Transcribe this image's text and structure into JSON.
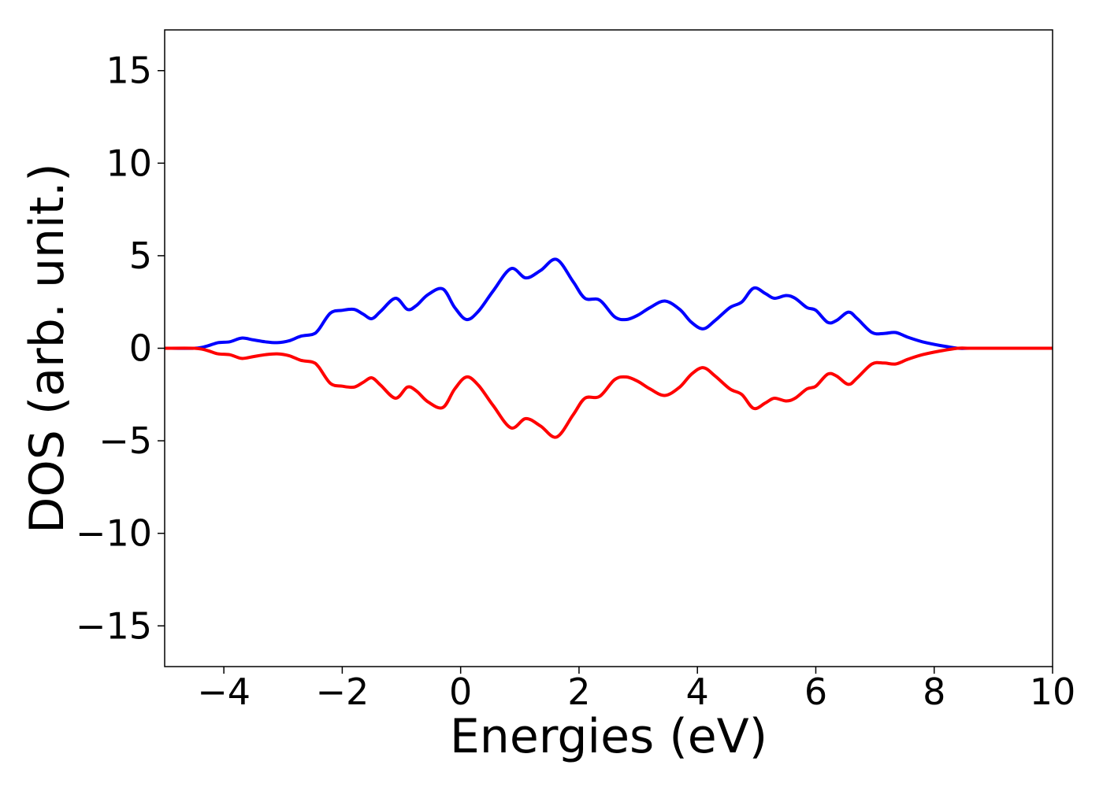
{
  "chart_data": {
    "type": "line",
    "title": "",
    "xlabel": "Energies (eV)",
    "ylabel": "DOS (arb. unit.)",
    "xlim": [
      -5,
      10
    ],
    "ylim": [
      -17.2,
      17.2
    ],
    "xticks": [
      -4,
      -2,
      0,
      2,
      4,
      6,
      8,
      10
    ],
    "yticks": [
      -15,
      -10,
      -5,
      0,
      5,
      10,
      15
    ],
    "xtick_labels": [
      "−4",
      "−2",
      "0",
      "2",
      "4",
      "6",
      "8",
      "10"
    ],
    "ytick_labels": [
      "−15",
      "−10",
      "−5",
      "0",
      "5",
      "10",
      "15"
    ],
    "grid": false,
    "legend": "none",
    "series": [
      {
        "color": "#0000ff",
        "x": [
          -5.0,
          -4.5,
          -4.3,
          -4.1,
          -3.9,
          -3.7,
          -3.5,
          -3.3,
          -3.1,
          -2.9,
          -2.7,
          -2.5,
          -2.4,
          -2.2,
          -2.0,
          -1.8,
          -1.65,
          -1.5,
          -1.35,
          -1.1,
          -0.9,
          -0.75,
          -0.55,
          -0.3,
          -0.1,
          0.1,
          0.3,
          0.55,
          0.85,
          1.1,
          1.35,
          1.62,
          1.9,
          2.1,
          2.35,
          2.6,
          2.8,
          3.0,
          3.2,
          3.45,
          3.7,
          3.9,
          4.1,
          4.3,
          4.55,
          4.75,
          4.95,
          5.15,
          5.3,
          5.5,
          5.65,
          5.85,
          6.0,
          6.2,
          6.35,
          6.55,
          6.7,
          6.95,
          7.15,
          7.35,
          7.55,
          7.8,
          8.1,
          8.4,
          8.6,
          9.0,
          10.0
        ],
        "y": [
          0.0,
          0.0,
          0.1,
          0.3,
          0.35,
          0.55,
          0.45,
          0.35,
          0.3,
          0.4,
          0.65,
          0.75,
          1.0,
          1.9,
          2.05,
          2.1,
          1.85,
          1.6,
          2.0,
          2.7,
          2.1,
          2.3,
          2.9,
          3.2,
          2.2,
          1.55,
          2.0,
          3.1,
          4.3,
          3.8,
          4.2,
          4.8,
          3.6,
          2.7,
          2.6,
          1.7,
          1.55,
          1.8,
          2.2,
          2.55,
          2.1,
          1.4,
          1.05,
          1.5,
          2.2,
          2.5,
          3.25,
          2.95,
          2.7,
          2.85,
          2.7,
          2.2,
          2.05,
          1.4,
          1.5,
          1.95,
          1.6,
          0.85,
          0.8,
          0.85,
          0.6,
          0.35,
          0.15,
          0.0,
          0.0,
          0.0,
          0.0
        ]
      },
      {
        "color": "#ff0000",
        "x": [
          -5.0,
          -4.5,
          -4.3,
          -4.1,
          -3.9,
          -3.7,
          -3.5,
          -3.3,
          -3.1,
          -2.9,
          -2.7,
          -2.5,
          -2.4,
          -2.2,
          -2.0,
          -1.8,
          -1.65,
          -1.5,
          -1.35,
          -1.1,
          -0.9,
          -0.75,
          -0.55,
          -0.3,
          -0.1,
          0.1,
          0.3,
          0.55,
          0.85,
          1.1,
          1.35,
          1.62,
          1.9,
          2.1,
          2.35,
          2.6,
          2.8,
          3.0,
          3.2,
          3.45,
          3.7,
          3.9,
          4.1,
          4.3,
          4.55,
          4.75,
          4.95,
          5.15,
          5.3,
          5.5,
          5.65,
          5.85,
          6.0,
          6.2,
          6.35,
          6.55,
          6.7,
          6.95,
          7.15,
          7.35,
          7.55,
          7.8,
          8.1,
          8.4,
          8.6,
          9.0,
          10.0
        ],
        "y": [
          0.0,
          0.0,
          -0.1,
          -0.3,
          -0.35,
          -0.55,
          -0.45,
          -0.35,
          -0.3,
          -0.4,
          -0.65,
          -0.75,
          -1.0,
          -1.9,
          -2.05,
          -2.1,
          -1.85,
          -1.6,
          -2.0,
          -2.7,
          -2.1,
          -2.3,
          -2.9,
          -3.2,
          -2.2,
          -1.55,
          -2.0,
          -3.1,
          -4.3,
          -3.8,
          -4.2,
          -4.8,
          -3.6,
          -2.7,
          -2.6,
          -1.7,
          -1.55,
          -1.8,
          -2.2,
          -2.55,
          -2.1,
          -1.4,
          -1.05,
          -1.5,
          -2.2,
          -2.5,
          -3.25,
          -2.95,
          -2.7,
          -2.85,
          -2.7,
          -2.2,
          -2.05,
          -1.4,
          -1.5,
          -1.95,
          -1.6,
          -0.85,
          -0.8,
          -0.85,
          -0.6,
          -0.35,
          -0.15,
          0.0,
          0.0,
          0.0,
          0.0
        ]
      }
    ]
  }
}
